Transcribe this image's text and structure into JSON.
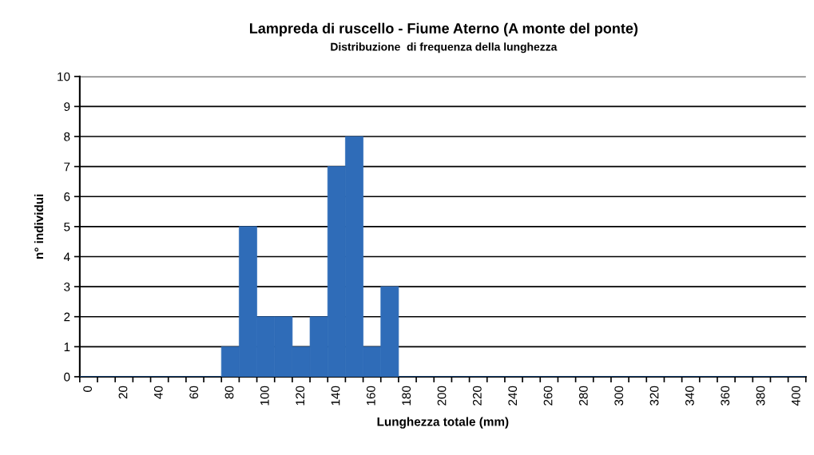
{
  "chart_data": {
    "type": "bar",
    "title": "Lampreda di ruscello - Fiume Aterno (A monte del ponte)",
    "subtitle": "Distribuzione  di frequenza della lunghezza",
    "xlabel": "Lunghezza totale (mm)",
    "ylabel": "n° individui",
    "categories": [
      "0",
      null,
      "20",
      null,
      "40",
      null,
      "60",
      null,
      "80",
      null,
      "100",
      null,
      "120",
      null,
      "140",
      null,
      "160",
      null,
      "180",
      null,
      "200",
      null,
      "220",
      null,
      "240",
      null,
      "260",
      null,
      "280",
      null,
      "300",
      null,
      "320",
      null,
      "340",
      null,
      "360",
      null,
      "380",
      null,
      "400"
    ],
    "values": [
      0,
      0,
      0,
      0,
      0,
      0,
      0,
      0,
      1,
      5,
      2,
      2,
      1,
      2,
      7,
      8,
      1,
      3,
      0,
      0,
      0,
      0,
      0,
      0,
      0,
      0,
      0,
      0,
      0,
      0,
      0,
      0,
      0,
      0,
      0,
      0,
      0,
      0,
      0,
      0,
      0
    ],
    "color": "#2f6cb8",
    "ylim": [
      0,
      10
    ],
    "yticks": [
      0,
      1,
      2,
      3,
      4,
      5,
      6,
      7,
      8,
      9,
      10
    ],
    "grid": "y"
  }
}
